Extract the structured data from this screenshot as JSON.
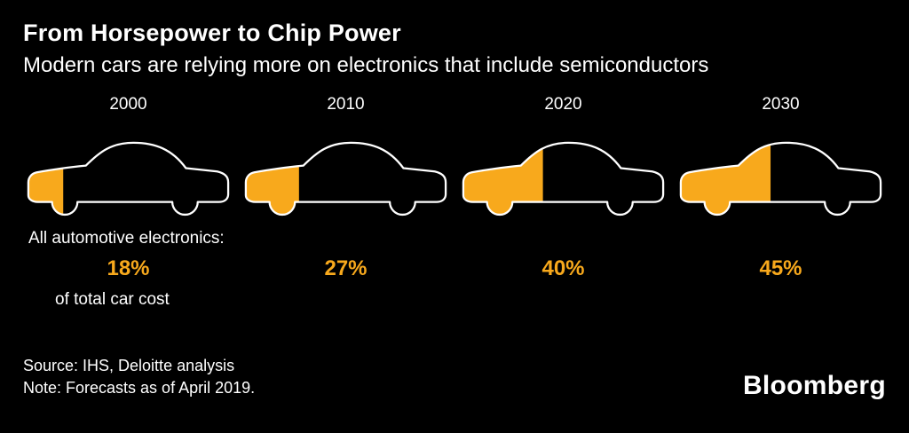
{
  "chart_data": {
    "type": "pictogram",
    "title": "From Horsepower to Chip Power",
    "subtitle": "Modern cars are relying more on electronics that include semiconductors",
    "categories": [
      "2000",
      "2010",
      "2020",
      "2030"
    ],
    "values": [
      18,
      27,
      40,
      45
    ],
    "pct_labels": [
      "18%",
      "27%",
      "40%",
      "45%"
    ],
    "series_label": "All automotive electronics:",
    "series_sublabel": "of total car cost",
    "unit": "%",
    "accent_color": "#f8a91c",
    "outline_color": "#ffffff",
    "background_color": "#000000",
    "legend_position": "none",
    "grid": false
  },
  "footer": {
    "source": "Source: IHS, Deloitte analysis",
    "note": "Note: Forecasts as of April 2019.",
    "brand": "Bloomberg"
  }
}
